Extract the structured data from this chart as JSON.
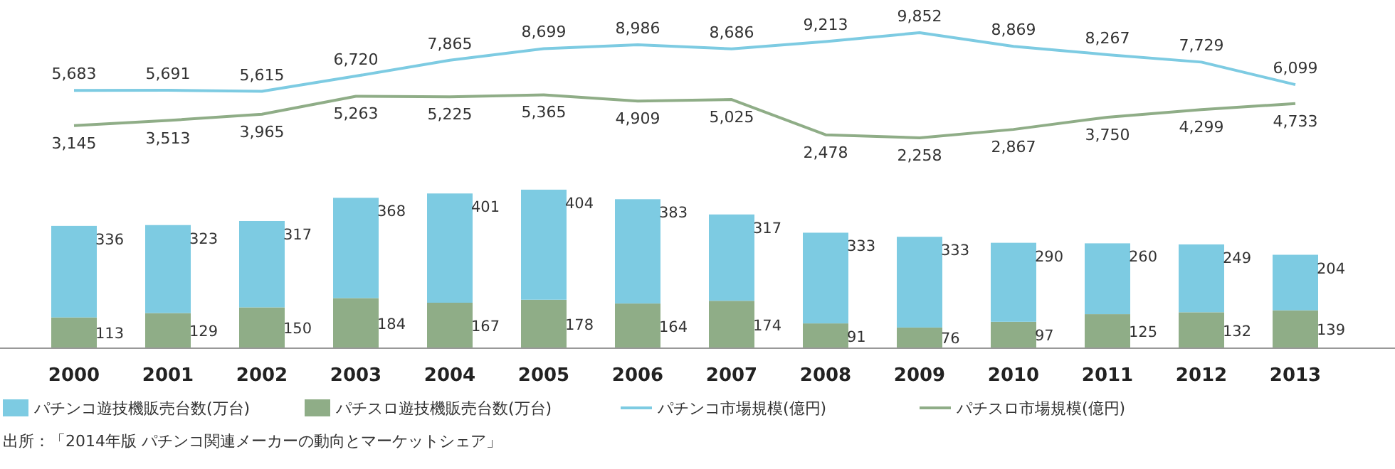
{
  "chart_data": [
    {
      "type": "line",
      "tick_labels": false,
      "legend": "bottom",
      "line_style": "solid",
      "marker": "none",
      "series": [
        {
          "name": "パチンコ市場規模(億円)",
          "color": "#7dcbe2",
          "values": [
            5683,
            5691,
            5615,
            6720,
            7865,
            8699,
            8986,
            8686,
            9213,
            9852,
            8869,
            8267,
            7729,
            6099
          ],
          "value_labels": [
            "5,683",
            "5,691",
            "5,615",
            "6,720",
            "7,865",
            "8,699",
            "8,986",
            "8,686",
            "9,213",
            "9,852",
            "8,869",
            "8,267",
            "7,729",
            "6,099"
          ]
        },
        {
          "name": "パチスロ市場規模(億円)",
          "color": "#8fad87",
          "values": [
            3145,
            3513,
            3965,
            5263,
            5225,
            5365,
            4909,
            5025,
            2478,
            2258,
            2867,
            3750,
            4299,
            4733
          ],
          "value_labels": [
            "3,145",
            "3,513",
            "3,965",
            "5,263",
            "5,225",
            "5,365",
            "4,909",
            "5,025",
            "2,478",
            "2,258",
            "2,867",
            "3,750",
            "4,299",
            "4,733"
          ]
        }
      ]
    },
    {
      "type": "bar",
      "stacked": true,
      "categories": [
        "2000",
        "2001",
        "2002",
        "2003",
        "2004",
        "2005",
        "2006",
        "2007",
        "2008",
        "2009",
        "2010",
        "2011",
        "2012",
        "2013"
      ],
      "ylim": [
        0,
        600
      ],
      "tick_labels": "x",
      "legend": "bottom",
      "data_labels": true,
      "series": [
        {
          "name": "パチスロ遊技機販売台数(万台)",
          "color": "#8fad87",
          "values": [
            113,
            129,
            150,
            184,
            167,
            178,
            164,
            174,
            91,
            76,
            97,
            125,
            132,
            139
          ]
        },
        {
          "name": "パチンコ遊技機販売台数(万台)",
          "color": "#7dcbe2",
          "values": [
            336,
            323,
            317,
            368,
            401,
            404,
            383,
            317,
            333,
            333,
            290,
            260,
            249,
            204
          ]
        }
      ],
      "annotations": [
        "出所：「2014年版 パチンコ関連メーカーの動向とマーケットシェア」"
      ]
    }
  ]
}
